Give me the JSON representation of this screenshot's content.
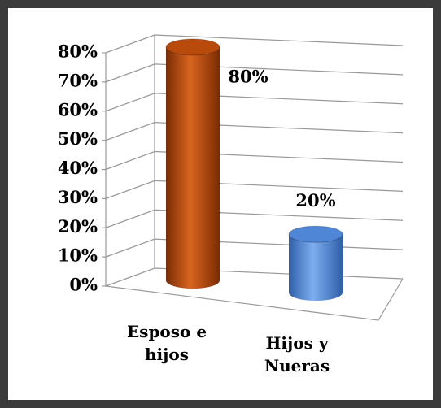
{
  "chart_data": {
    "type": "bar",
    "categories": [
      "Esposo e hijos",
      "Hijos y Nueras"
    ],
    "values": [
      80,
      20
    ],
    "value_labels": [
      "80%",
      "20%"
    ],
    "colors": [
      "#b84a0c",
      "#4f86d6"
    ],
    "ylim": [
      0,
      80
    ],
    "yticks": [
      {
        "value": 0,
        "label": "0%"
      },
      {
        "value": 10,
        "label": "10%"
      },
      {
        "value": 20,
        "label": "20%"
      },
      {
        "value": 30,
        "label": "30%"
      },
      {
        "value": 40,
        "label": "40%"
      },
      {
        "value": 50,
        "label": "50%"
      },
      {
        "value": 60,
        "label": "60%"
      },
      {
        "value": 70,
        "label": "70%"
      },
      {
        "value": 80,
        "label": "80%"
      }
    ],
    "grid": true
  }
}
